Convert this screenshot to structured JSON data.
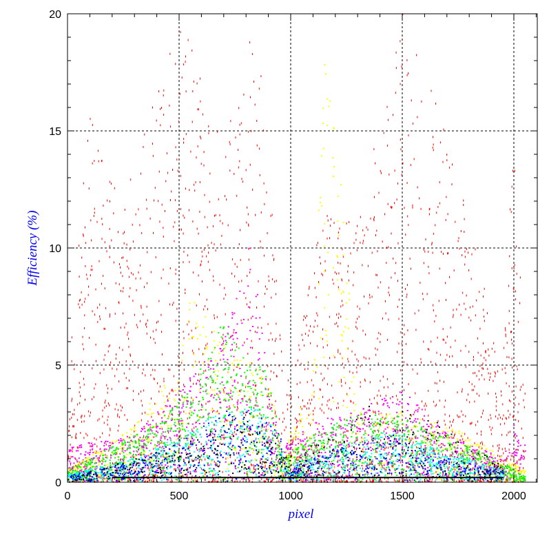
{
  "chart_data": {
    "type": "scatter",
    "title": "",
    "xlabel": "pixel",
    "ylabel": "Efficiency (%)",
    "xlim": [
      0,
      2105
    ],
    "ylim": [
      0,
      20
    ],
    "xticks": [
      0,
      500,
      1000,
      1500,
      2000
    ],
    "yticks": [
      0,
      5,
      10,
      15,
      20
    ],
    "xtick_labels": [
      "0",
      "500",
      "1000",
      "1500",
      "2000"
    ],
    "ytick_labels": [
      "0",
      "5",
      "10",
      "15",
      "20"
    ],
    "grid": true,
    "legend": "none",
    "series": [
      {
        "name": "red",
        "color": "#ff0000",
        "count": 2600,
        "envelope": [
          [
            0,
            5
          ],
          [
            100,
            16
          ],
          [
            250,
            12
          ],
          [
            500,
            20
          ],
          [
            700,
            15
          ],
          [
            850,
            20
          ],
          [
            950,
            7
          ],
          [
            1000,
            4
          ],
          [
            1150,
            12
          ],
          [
            1300,
            11
          ],
          [
            1500,
            20
          ],
          [
            1700,
            15
          ],
          [
            1950,
            5
          ],
          [
            2000,
            16
          ],
          [
            2050,
            4
          ]
        ]
      },
      {
        "name": "magenta",
        "color": "#ff00ff",
        "count": 1300,
        "envelope": [
          [
            0,
            1.5
          ],
          [
            300,
            2
          ],
          [
            500,
            4
          ],
          [
            700,
            6
          ],
          [
            820,
            10.5
          ],
          [
            900,
            4
          ],
          [
            960,
            1.5
          ],
          [
            1100,
            2.5
          ],
          [
            1400,
            3.5
          ],
          [
            1500,
            4
          ],
          [
            1700,
            2
          ],
          [
            1950,
            1
          ],
          [
            2000,
            2.5
          ],
          [
            2050,
            1.5
          ]
        ]
      },
      {
        "name": "yellow",
        "color": "#ffff00",
        "count": 900,
        "envelope": [
          [
            0,
            0.5
          ],
          [
            300,
            2.5
          ],
          [
            500,
            5
          ],
          [
            550,
            8
          ],
          [
            700,
            6
          ],
          [
            900,
            4.5
          ],
          [
            960,
            1
          ],
          [
            1100,
            5
          ],
          [
            1150,
            20
          ],
          [
            1250,
            10
          ],
          [
            1300,
            3
          ],
          [
            1500,
            3
          ],
          [
            1800,
            2
          ],
          [
            1950,
            1
          ],
          [
            2050,
            0.5
          ]
        ]
      },
      {
        "name": "green",
        "color": "#00ff00",
        "count": 1400,
        "envelope": [
          [
            0,
            0.5
          ],
          [
            200,
            1.5
          ],
          [
            400,
            2.5
          ],
          [
            550,
            4
          ],
          [
            700,
            7
          ],
          [
            800,
            5
          ],
          [
            900,
            5
          ],
          [
            960,
            1
          ],
          [
            1100,
            2
          ],
          [
            1300,
            3
          ],
          [
            1500,
            2.8
          ],
          [
            1700,
            2
          ],
          [
            1950,
            0.8
          ],
          [
            2050,
            0.2
          ]
        ]
      },
      {
        "name": "cyan",
        "color": "#00ffff",
        "count": 900,
        "envelope": [
          [
            0,
            0.3
          ],
          [
            300,
            1
          ],
          [
            500,
            2
          ],
          [
            700,
            3
          ],
          [
            850,
            3.2
          ],
          [
            950,
            2
          ],
          [
            980,
            0.6
          ],
          [
            1200,
            1.5
          ],
          [
            1450,
            2.2
          ],
          [
            1700,
            1.2
          ],
          [
            1950,
            0.5
          ]
        ]
      },
      {
        "name": "blue",
        "color": "#0000ff",
        "count": 700,
        "envelope": [
          [
            0,
            0.3
          ],
          [
            300,
            0.8
          ],
          [
            500,
            1.8
          ],
          [
            700,
            3
          ],
          [
            850,
            3
          ],
          [
            950,
            2
          ],
          [
            980,
            0.5
          ],
          [
            1200,
            1.5
          ],
          [
            1450,
            2
          ],
          [
            1700,
            1
          ],
          [
            1950,
            0.4
          ]
        ]
      },
      {
        "name": "black",
        "color": "#000000",
        "count": 350,
        "envelope": [
          [
            0,
            0.2
          ],
          [
            500,
            1.5
          ],
          [
            800,
            3
          ],
          [
            950,
            1
          ],
          [
            1200,
            2
          ],
          [
            1350,
            3.4
          ],
          [
            1500,
            3.3
          ],
          [
            1700,
            2.3
          ],
          [
            1900,
            1
          ],
          [
            1950,
            0.6
          ]
        ]
      }
    ],
    "baseline_line": {
      "color": "#000000",
      "x_range": [
        200,
        1950
      ],
      "y": 0.2
    }
  }
}
